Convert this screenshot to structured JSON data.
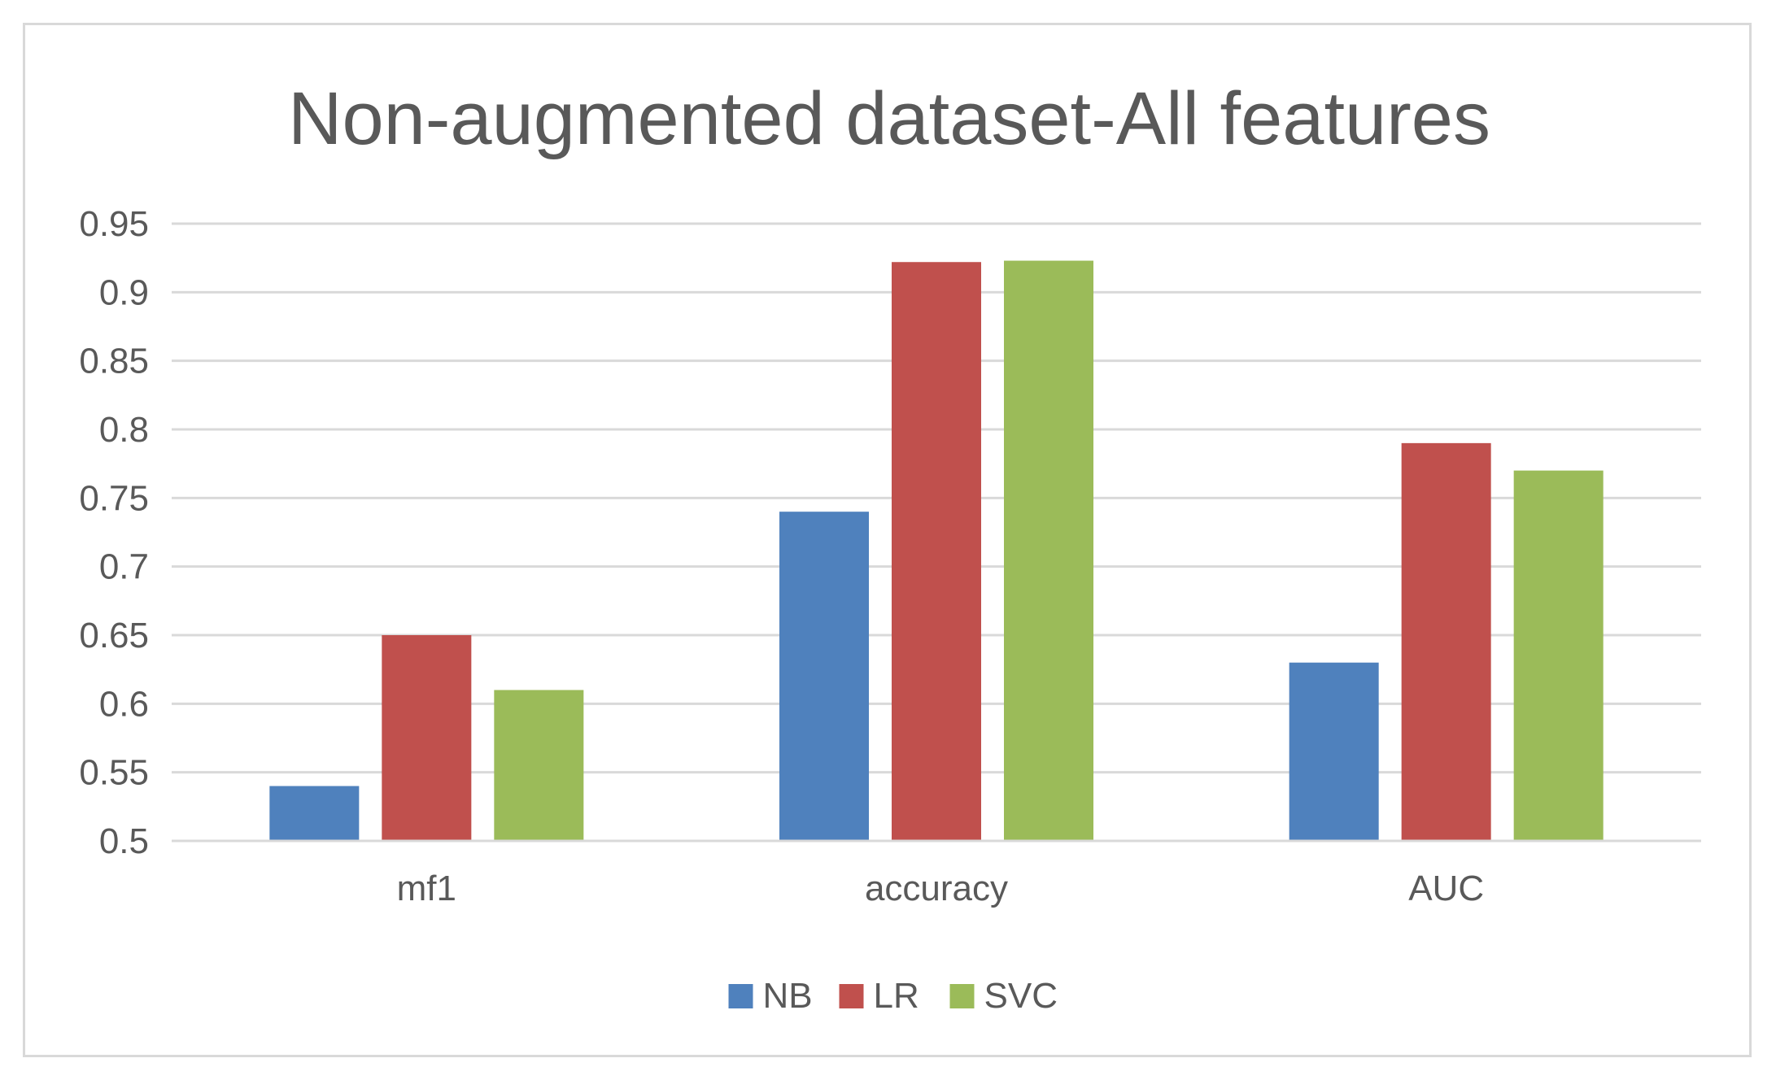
{
  "chart_data": {
    "type": "bar",
    "title": "Non-augmented dataset-All features",
    "xlabel": "",
    "ylabel": "",
    "categories": [
      "mf1",
      "accuracy",
      "AUC"
    ],
    "series": [
      {
        "name": "NB",
        "color": "#4f81bd",
        "values": [
          0.54,
          0.74,
          0.63
        ]
      },
      {
        "name": "LR",
        "color": "#c0504d",
        "values": [
          0.65,
          0.922,
          0.79
        ]
      },
      {
        "name": "SVC",
        "color": "#9bbb59",
        "values": [
          0.61,
          0.923,
          0.77
        ]
      }
    ],
    "ylim": [
      0.5,
      0.95
    ],
    "yticks": [
      "0.5",
      "0.55",
      "0.6",
      "0.65",
      "0.7",
      "0.75",
      "0.8",
      "0.85",
      "0.9",
      "0.95"
    ],
    "grid": true,
    "legend_position": "bottom"
  }
}
